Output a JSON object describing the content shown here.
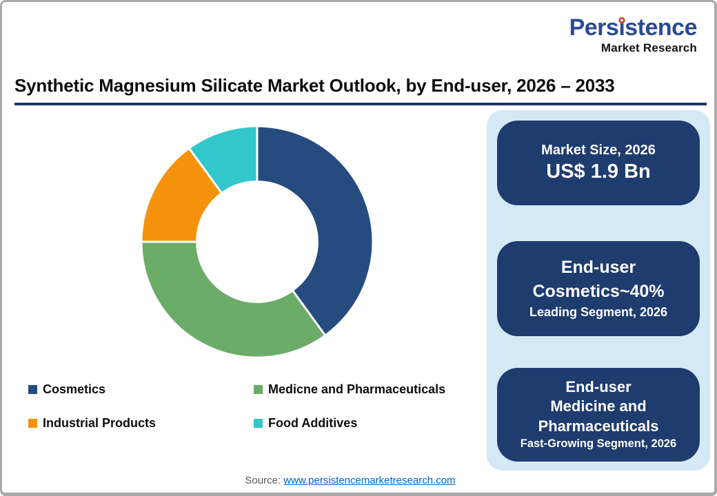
{
  "logo": {
    "name": "Persistence",
    "tagline": "Market Research",
    "brand_color": "#2b4a94",
    "dot_color": "#d93025"
  },
  "header": {
    "title": "Synthetic Magnesium Silicate Market Outlook, by End-user, 2026 – 2033",
    "underline_color": "#1f3864"
  },
  "chart_data": {
    "type": "pie",
    "subtype": "donut",
    "categories": [
      "Cosmetics",
      "Medicne and Pharmaceuticals",
      "Industrial Products",
      "Food Additives"
    ],
    "values": [
      40,
      35,
      15,
      10
    ],
    "unit": "%",
    "colors": [
      "#264b7e",
      "#6bac68",
      "#f5920c",
      "#31c7cb"
    ],
    "start_angle_deg": 0,
    "direction": "clockwise",
    "inner_radius_ratio": 0.52,
    "segment_gap_color": "#ffffff",
    "legend_position": "bottom",
    "legend_columns": 2
  },
  "panel": {
    "background": "#d4e9f5",
    "card_background": "#1e3c6e",
    "cards": [
      {
        "label": "Market Size, 2026",
        "value": "US$ 1.9 Bn"
      },
      {
        "heading": "End-user\nCosmetics~40%",
        "subtext": "Leading Segment, 2026"
      },
      {
        "heading": "End-user\nMedicine and\nPharmaceuticals",
        "subtext": "Fast-Growing Segment, 2026"
      }
    ]
  },
  "footer": {
    "source_label": "Source:",
    "source_link": "www.persistencemarketresearch.com"
  }
}
